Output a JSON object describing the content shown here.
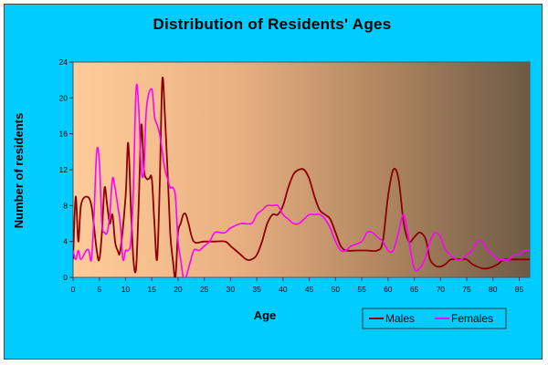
{
  "chart_data": {
    "type": "line",
    "title": "Distribution of Residents' Ages",
    "xlabel": "Age",
    "ylabel": "Number of residents",
    "xlim": [
      0,
      87
    ],
    "ylim": [
      0,
      24
    ],
    "x_ticks": [
      0,
      5,
      10,
      15,
      20,
      25,
      30,
      35,
      40,
      45,
      50,
      55,
      60,
      65,
      70,
      75,
      80,
      85
    ],
    "y_ticks": [
      0,
      4,
      8,
      12,
      16,
      20,
      24
    ],
    "grid": false,
    "legend_position": "bottom-right",
    "background": "horizontal gradient from peach to dark brown",
    "series": [
      {
        "name": "Males",
        "color": "#8b0000",
        "points": [
          [
            0,
            2
          ],
          [
            0.5,
            9
          ],
          [
            1,
            4
          ],
          [
            1.5,
            8
          ],
          [
            2.5,
            9
          ],
          [
            3.5,
            8
          ],
          [
            4.5,
            3
          ],
          [
            5,
            2
          ],
          [
            5.5,
            5
          ],
          [
            6,
            10
          ],
          [
            6.5,
            8
          ],
          [
            7,
            6
          ],
          [
            7.5,
            7
          ],
          [
            8,
            4
          ],
          [
            8.5,
            3
          ],
          [
            9,
            3
          ],
          [
            10,
            9
          ],
          [
            10.5,
            15
          ],
          [
            11,
            8
          ],
          [
            11.5,
            2
          ],
          [
            12,
            1
          ],
          [
            12.5,
            8
          ],
          [
            13,
            17
          ],
          [
            13.5,
            12
          ],
          [
            14,
            11
          ],
          [
            14.5,
            11
          ],
          [
            15,
            11
          ],
          [
            15.5,
            6
          ],
          [
            16,
            2
          ],
          [
            16.5,
            10
          ],
          [
            17,
            22
          ],
          [
            17.5,
            18
          ],
          [
            18,
            12
          ],
          [
            18.5,
            5
          ],
          [
            19,
            2
          ],
          [
            19.5,
            0
          ],
          [
            20,
            5
          ],
          [
            20.5,
            6
          ],
          [
            21,
            7
          ],
          [
            21.5,
            7
          ],
          [
            22,
            6
          ],
          [
            23,
            4
          ],
          [
            25,
            4
          ],
          [
            27,
            4
          ],
          [
            29,
            4
          ],
          [
            30,
            3.5
          ],
          [
            31,
            3
          ],
          [
            32,
            2.5
          ],
          [
            33,
            2
          ],
          [
            34,
            2
          ],
          [
            35,
            2.5
          ],
          [
            36,
            4
          ],
          [
            37,
            6
          ],
          [
            38,
            7
          ],
          [
            39,
            7
          ],
          [
            40,
            8
          ],
          [
            41,
            10
          ],
          [
            42,
            11.5
          ],
          [
            43,
            12
          ],
          [
            44,
            12
          ],
          [
            45,
            11
          ],
          [
            46,
            9
          ],
          [
            47,
            7.5
          ],
          [
            48,
            7
          ],
          [
            49,
            6.5
          ],
          [
            50,
            5
          ],
          [
            51,
            3.5
          ],
          [
            52,
            3
          ],
          [
            54,
            3
          ],
          [
            56,
            3
          ],
          [
            58,
            3
          ],
          [
            59,
            4
          ],
          [
            60,
            9
          ],
          [
            61,
            12
          ],
          [
            62,
            11
          ],
          [
            63,
            6
          ],
          [
            64,
            4
          ],
          [
            65,
            4.5
          ],
          [
            66,
            5
          ],
          [
            67,
            4.5
          ],
          [
            67.5,
            3.5
          ],
          [
            68,
            2
          ],
          [
            69,
            1.3
          ],
          [
            70,
            1.2
          ],
          [
            71,
            1.5
          ],
          [
            72,
            2
          ],
          [
            74,
            2
          ],
          [
            75,
            2
          ],
          [
            76,
            1.5
          ],
          [
            77,
            1.2
          ],
          [
            78,
            1
          ],
          [
            79,
            1
          ],
          [
            80,
            1.2
          ],
          [
            81,
            1.5
          ],
          [
            82,
            2
          ],
          [
            83,
            2
          ],
          [
            87,
            2
          ]
        ]
      },
      {
        "name": "Females",
        "color": "#ff00ff",
        "points": [
          [
            0,
            3
          ],
          [
            0.5,
            2
          ],
          [
            1,
            3
          ],
          [
            1.5,
            2
          ],
          [
            2.5,
            3
          ],
          [
            3,
            3
          ],
          [
            3.5,
            2
          ],
          [
            4,
            7
          ],
          [
            4.5,
            14
          ],
          [
            5,
            13
          ],
          [
            5.5,
            6
          ],
          [
            6,
            5
          ],
          [
            6.5,
            5
          ],
          [
            7,
            7
          ],
          [
            7.5,
            11
          ],
          [
            8,
            10
          ],
          [
            8.5,
            8
          ],
          [
            9,
            6
          ],
          [
            9.5,
            2
          ],
          [
            10,
            3
          ],
          [
            10.5,
            3
          ],
          [
            11,
            4
          ],
          [
            11.5,
            10
          ],
          [
            12,
            21
          ],
          [
            12.5,
            19
          ],
          [
            13,
            12
          ],
          [
            13.5,
            12
          ],
          [
            14,
            19
          ],
          [
            15,
            21
          ],
          [
            15.5,
            18
          ],
          [
            16,
            17
          ],
          [
            16.5,
            16
          ],
          [
            17,
            14
          ],
          [
            17.5,
            12
          ],
          [
            18,
            11
          ],
          [
            18.5,
            10
          ],
          [
            19,
            10
          ],
          [
            19.5,
            9
          ],
          [
            20,
            4
          ],
          [
            20.5,
            2
          ],
          [
            21,
            0
          ],
          [
            21.5,
            0
          ],
          [
            22,
            1
          ],
          [
            23,
            3
          ],
          [
            24,
            3
          ],
          [
            25,
            3.5
          ],
          [
            26,
            4
          ],
          [
            27,
            5
          ],
          [
            28,
            5
          ],
          [
            29,
            5
          ],
          [
            30,
            5.5
          ],
          [
            32,
            6
          ],
          [
            34,
            6
          ],
          [
            35,
            7
          ],
          [
            36,
            7.5
          ],
          [
            37,
            8
          ],
          [
            38,
            8
          ],
          [
            39,
            8
          ],
          [
            40,
            7
          ],
          [
            41,
            6.5
          ],
          [
            42,
            6
          ],
          [
            43,
            6
          ],
          [
            44,
            6.5
          ],
          [
            45,
            7
          ],
          [
            46,
            7
          ],
          [
            47,
            7
          ],
          [
            48,
            6.5
          ],
          [
            49,
            5.5
          ],
          [
            50,
            4
          ],
          [
            51,
            3
          ],
          [
            52,
            3
          ],
          [
            53,
            3.5
          ],
          [
            55,
            4
          ],
          [
            56,
            5
          ],
          [
            57,
            5
          ],
          [
            58,
            4.5
          ],
          [
            59,
            4
          ],
          [
            60,
            3
          ],
          [
            61,
            3
          ],
          [
            62,
            5
          ],
          [
            63,
            7
          ],
          [
            64,
            4
          ],
          [
            65,
            1
          ],
          [
            66,
            1
          ],
          [
            67,
            2
          ],
          [
            68,
            4
          ],
          [
            69,
            5
          ],
          [
            70,
            4.5
          ],
          [
            71,
            3
          ],
          [
            72,
            2.5
          ],
          [
            73,
            2
          ],
          [
            74,
            2
          ],
          [
            75,
            2.5
          ],
          [
            76,
            3
          ],
          [
            77,
            4
          ],
          [
            78,
            4
          ],
          [
            79,
            3
          ],
          [
            80,
            2.5
          ],
          [
            81,
            2
          ],
          [
            82,
            2
          ],
          [
            83,
            2
          ],
          [
            84,
            2.5
          ],
          [
            85,
            2.5
          ],
          [
            86,
            3
          ],
          [
            87,
            3
          ]
        ]
      }
    ]
  }
}
